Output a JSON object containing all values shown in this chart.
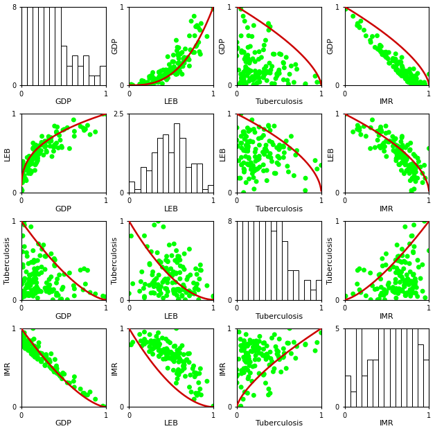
{
  "variables": [
    "GDP",
    "LEB",
    "Tuberculosis",
    "IMR"
  ],
  "n_points": 130,
  "random_seed": 7,
  "dot_color": "#00ff00",
  "curve_color": "#cc0000",
  "dot_size": 25,
  "dot_alpha": 1.0,
  "curve_lw": 1.8,
  "hist_bins": 15,
  "hist_color": "white",
  "hist_edgecolor": "black",
  "background": "white",
  "axis_label_fontsize": 8,
  "tick_fontsize": 7,
  "figsize": [
    6.28,
    6.22
  ],
  "dpi": 100,
  "hist_ymaxes": {
    "GDP": 8,
    "LEB": 2.5,
    "Tuberculosis": 8,
    "IMR": 5
  }
}
